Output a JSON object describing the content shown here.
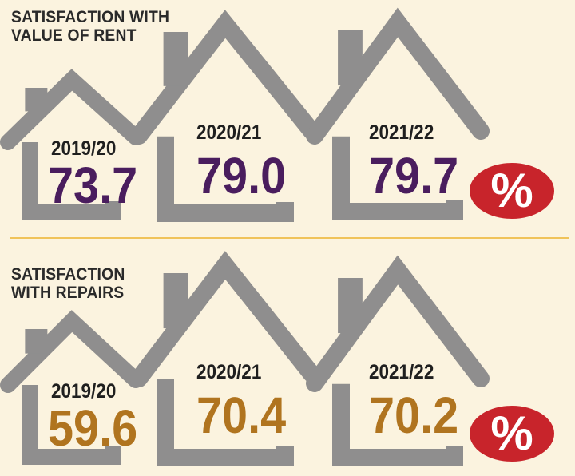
{
  "colors": {
    "background": "#fbf3df",
    "house": "#8f8e8e",
    "rent_value": "#4a1d5e",
    "repairs_value": "#b0741f",
    "badge": "#c8242b",
    "divider": "#f0c35a"
  },
  "icons": {
    "house": "house-outline-icon",
    "percent": "percent-badge-icon"
  },
  "chart_data": [
    {
      "type": "bar",
      "title_lines": [
        "SATISFACTION WITH",
        "VALUE OF RENT"
      ],
      "categories": [
        "2019/20",
        "2020/21",
        "2021/22"
      ],
      "values": [
        73.7,
        79.0,
        79.7
      ],
      "value_labels": [
        "73.7",
        "79.0",
        "79.7"
      ],
      "unit": "%"
    },
    {
      "type": "bar",
      "title_lines": [
        "SATISFACTION",
        "WITH REPAIRS"
      ],
      "categories": [
        "2019/20",
        "2020/21",
        "2021/22"
      ],
      "values": [
        59.6,
        70.4,
        70.2
      ],
      "value_labels": [
        "59.6",
        "70.4",
        "70.2"
      ],
      "unit": "%"
    }
  ]
}
